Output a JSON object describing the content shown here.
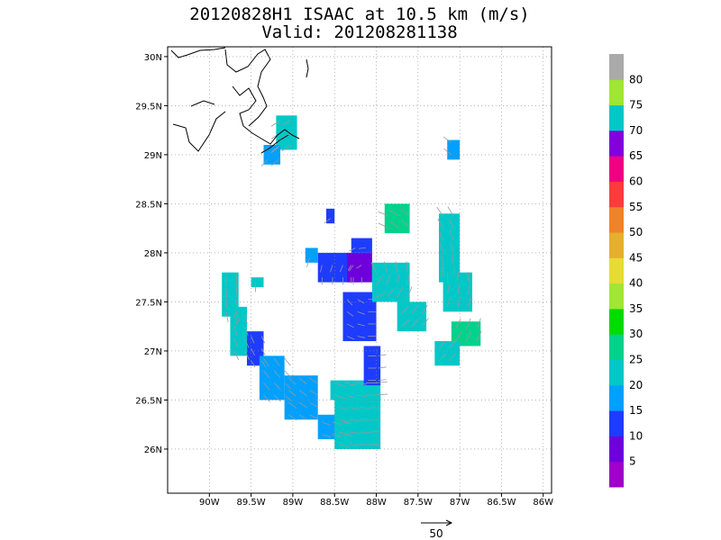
{
  "title_line1": "20120828H1 ISAAC at 10.5 km (m/s)",
  "title_line2": "Valid: 201208281138",
  "axes": {
    "lon_min": -90.5,
    "lon_max": -85.9,
    "lat_min": 25.55,
    "lat_max": 30.1,
    "x_ticks": [
      {
        "value": -90,
        "label": "90W"
      },
      {
        "value": -89.5,
        "label": "89.5W"
      },
      {
        "value": -89,
        "label": "89W"
      },
      {
        "value": -88.5,
        "label": "88.5W"
      },
      {
        "value": -88,
        "label": "88W"
      },
      {
        "value": -87.5,
        "label": "87.5W"
      },
      {
        "value": -87,
        "label": "87W"
      },
      {
        "value": -86.5,
        "label": "86.5W"
      },
      {
        "value": -86,
        "label": "86W"
      }
    ],
    "y_ticks": [
      {
        "value": 26,
        "label": "26N"
      },
      {
        "value": 26.5,
        "label": "26.5N"
      },
      {
        "value": 27,
        "label": "27N"
      },
      {
        "value": 27.5,
        "label": "27.5N"
      },
      {
        "value": 28,
        "label": "28N"
      },
      {
        "value": 28.5,
        "label": "28.5N"
      },
      {
        "value": 29,
        "label": "29N"
      },
      {
        "value": 29.5,
        "label": "29.5N"
      },
      {
        "value": 30,
        "label": "30N"
      }
    ],
    "grid": true
  },
  "colorbar": {
    "labels": [
      "5",
      "10",
      "15",
      "20",
      "25",
      "30",
      "35",
      "40",
      "45",
      "50",
      "55",
      "60",
      "65",
      "70",
      "75",
      "80"
    ],
    "colors": [
      "#a000c8",
      "#6e00dc",
      "#1e3cff",
      "#00a0ff",
      "#00c8c8",
      "#00d28c",
      "#00dc00",
      "#a0e632",
      "#e6dc32",
      "#e6af2d",
      "#f08228",
      "#fa3c3c",
      "#f00082",
      "#8200dc",
      "#00c8c8",
      "#a0e632",
      "#aaaaaa"
    ]
  },
  "vector_legend": {
    "label": "50"
  },
  "chart_data": {
    "type": "heatmap",
    "title": "20120828H1 ISAAC at 10.5 km (m/s)",
    "subtitle": "Valid: 201208281138",
    "value_units": "m/s",
    "cell_size_deg": 0.05,
    "regions": [
      {
        "lon": [
          -89.85,
          -89.65
        ],
        "lat": [
          27.35,
          27.8
        ],
        "value": 22
      },
      {
        "lon": [
          -89.75,
          -89.55
        ],
        "lat": [
          26.95,
          27.45
        ],
        "value": 20
      },
      {
        "lon": [
          -89.5,
          -89.35
        ],
        "lat": [
          27.65,
          27.75
        ],
        "value": 20
      },
      {
        "lon": [
          -89.55,
          -89.35
        ],
        "lat": [
          26.85,
          27.2
        ],
        "value": 13
      },
      {
        "lon": [
          -89.4,
          -89.1
        ],
        "lat": [
          26.5,
          26.95
        ],
        "value": 18
      },
      {
        "lon": [
          -89.1,
          -88.7
        ],
        "lat": [
          26.3,
          26.75
        ],
        "value": 19
      },
      {
        "lon": [
          -88.7,
          -88.3
        ],
        "lat": [
          26.1,
          26.35
        ],
        "value": 17
      },
      {
        "lon": [
          -88.5,
          -87.95
        ],
        "lat": [
          26.0,
          26.55
        ],
        "value": 22
      },
      {
        "lon": [
          -88.55,
          -87.95
        ],
        "lat": [
          26.5,
          26.7
        ],
        "value": 24
      },
      {
        "lon": [
          -88.15,
          -87.95
        ],
        "lat": [
          26.65,
          27.05
        ],
        "value": 14
      },
      {
        "lon": [
          -88.4,
          -88.0
        ],
        "lat": [
          27.1,
          27.6
        ],
        "value": 13
      },
      {
        "lon": [
          -88.7,
          -88.2
        ],
        "lat": [
          27.7,
          28.0
        ],
        "value": 12
      },
      {
        "lon": [
          -88.35,
          -88.05
        ],
        "lat": [
          27.7,
          28.0
        ],
        "value": 8
      },
      {
        "lon": [
          -88.3,
          -88.05
        ],
        "lat": [
          28.0,
          28.15
        ],
        "value": 11
      },
      {
        "lon": [
          -88.05,
          -87.6
        ],
        "lat": [
          27.5,
          27.9
        ],
        "value": 24
      },
      {
        "lon": [
          -87.9,
          -87.6
        ],
        "lat": [
          28.2,
          28.5
        ],
        "value": 25
      },
      {
        "lon": [
          -87.75,
          -87.4
        ],
        "lat": [
          27.2,
          27.5
        ],
        "value": 22
      },
      {
        "lon": [
          -87.25,
          -87.0
        ],
        "lat": [
          27.7,
          28.4
        ],
        "value": 23
      },
      {
        "lon": [
          -87.2,
          -86.85
        ],
        "lat": [
          27.4,
          27.8
        ],
        "value": 21
      },
      {
        "lon": [
          -87.1,
          -86.75
        ],
        "lat": [
          27.05,
          27.3
        ],
        "value": 25
      },
      {
        "lon": [
          -87.3,
          -87.0
        ],
        "lat": [
          26.85,
          27.1
        ],
        "value": 21
      },
      {
        "lon": [
          -88.6,
          -88.5
        ],
        "lat": [
          28.3,
          28.45
        ],
        "value": 13
      },
      {
        "lon": [
          -88.85,
          -88.7
        ],
        "lat": [
          27.9,
          28.05
        ],
        "value": 19
      },
      {
        "lon": [
          -89.2,
          -88.95
        ],
        "lat": [
          29.05,
          29.4
        ],
        "value": 23
      },
      {
        "lon": [
          -89.35,
          -89.15
        ],
        "lat": [
          28.9,
          29.1
        ],
        "value": 18
      },
      {
        "lon": [
          -87.15,
          -87.0
        ],
        "lat": [
          28.95,
          29.15
        ],
        "value": 19
      }
    ]
  }
}
